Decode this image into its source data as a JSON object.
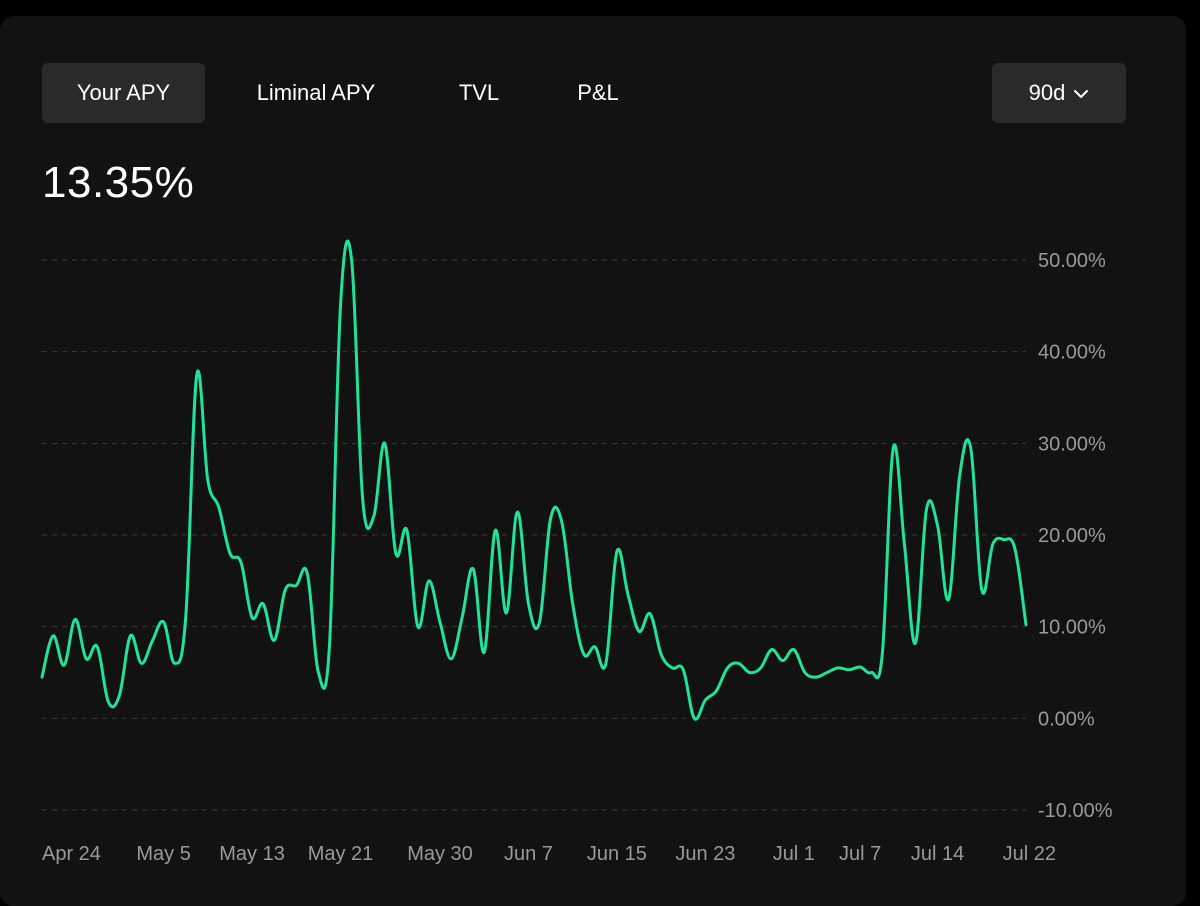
{
  "tabs": [
    {
      "label": "Your APY",
      "active": true
    },
    {
      "label": "Liminal APY",
      "active": false
    },
    {
      "label": "TVL",
      "active": false
    },
    {
      "label": "P&L",
      "active": false
    }
  ],
  "range": {
    "label": "90d",
    "icon": "chevron-down-icon"
  },
  "current_value": "13.35%",
  "colors": {
    "line": "#20e39b",
    "background": "#121212",
    "grid": "#3a3a3a",
    "label": "#9a9a9a"
  },
  "chart_data": {
    "type": "line",
    "series": [
      {
        "x": [
          "Apr 24",
          "Apr 25",
          "Apr 26",
          "Apr 27",
          "Apr 28",
          "Apr 29",
          "Apr 30",
          "May 1",
          "May 2",
          "May 3",
          "May 4",
          "May 5",
          "May 6",
          "May 7",
          "May 8",
          "May 9",
          "May 10",
          "May 11",
          "May 12",
          "May 13",
          "May 14",
          "May 15",
          "May 16",
          "May 17",
          "May 18",
          "May 19",
          "May 20",
          "May 21",
          "May 22",
          "May 23",
          "May 24",
          "May 25",
          "May 26",
          "May 27",
          "May 28",
          "May 29",
          "May 30",
          "May 31",
          "Jun 1",
          "Jun 2",
          "Jun 3",
          "Jun 4",
          "Jun 5",
          "Jun 6",
          "Jun 7",
          "Jun 8",
          "Jun 9",
          "Jun 10",
          "Jun 11",
          "Jun 12",
          "Jun 13",
          "Jun 14",
          "Jun 15",
          "Jun 16",
          "Jun 17",
          "Jun 18",
          "Jun 19",
          "Jun 20",
          "Jun 21",
          "Jun 22",
          "Jun 23",
          "Jun 24",
          "Jun 25",
          "Jun 26",
          "Jun 27",
          "Jun 28",
          "Jun 29",
          "Jun 30",
          "Jul 1",
          "Jul 2",
          "Jul 3",
          "Jul 4",
          "Jul 5",
          "Jul 6",
          "Jul 7",
          "Jul 8",
          "Jul 9",
          "Jul 10",
          "Jul 11",
          "Jul 12",
          "Jul 13",
          "Jul 14",
          "Jul 15",
          "Jul 16",
          "Jul 17",
          "Jul 18",
          "Jul 19",
          "Jul 20",
          "Jul 21",
          "Jul 22"
        ],
        "values": [
          4.5,
          9.0,
          5.8,
          10.8,
          6.5,
          7.8,
          1.8,
          2.5,
          9.0,
          6.0,
          8.5,
          10.5,
          6.0,
          11.0,
          37.5,
          26.0,
          23.0,
          18.0,
          17.0,
          11.0,
          12.5,
          8.5,
          14.0,
          14.5,
          15.8,
          5.0,
          8.0,
          45.0,
          50.0,
          24.0,
          22.0,
          30.0,
          18.0,
          20.5,
          10.0,
          15.0,
          10.5,
          6.5,
          11.0,
          16.3,
          7.2,
          20.5,
          11.5,
          22.5,
          12.5,
          10.5,
          21.8,
          21.5,
          12.5,
          7.0,
          7.8,
          6.0,
          18.2,
          13.5,
          9.5,
          11.4,
          7.0,
          5.5,
          5.3,
          0.0,
          2.0,
          3.0,
          5.5,
          6.0,
          5.0,
          5.5,
          7.5,
          6.3,
          7.5,
          5.0,
          4.5,
          5.0,
          5.5,
          5.3,
          5.6,
          5.0,
          7.0,
          29.5,
          19.0,
          8.2,
          22.8,
          21.0,
          13.0,
          26.5,
          29.5,
          14.0,
          19.0,
          19.5,
          18.5,
          10.2
        ]
      }
    ],
    "xticks": [
      "Apr 24",
      "May 5",
      "May 13",
      "May 21",
      "May 30",
      "Jun 7",
      "Jun 15",
      "Jun 23",
      "Jul 1",
      "Jul 7",
      "Jul 14",
      "Jul 22"
    ],
    "yticks": [
      "50.00%",
      "40.00%",
      "30.00%",
      "20.00%",
      "10.00%",
      "0.00%",
      "-10.00%"
    ],
    "ytick_values": [
      50,
      40,
      30,
      20,
      10,
      0,
      -10
    ],
    "ylim": [
      -10,
      50
    ],
    "grid": "horizontal-dashed"
  }
}
